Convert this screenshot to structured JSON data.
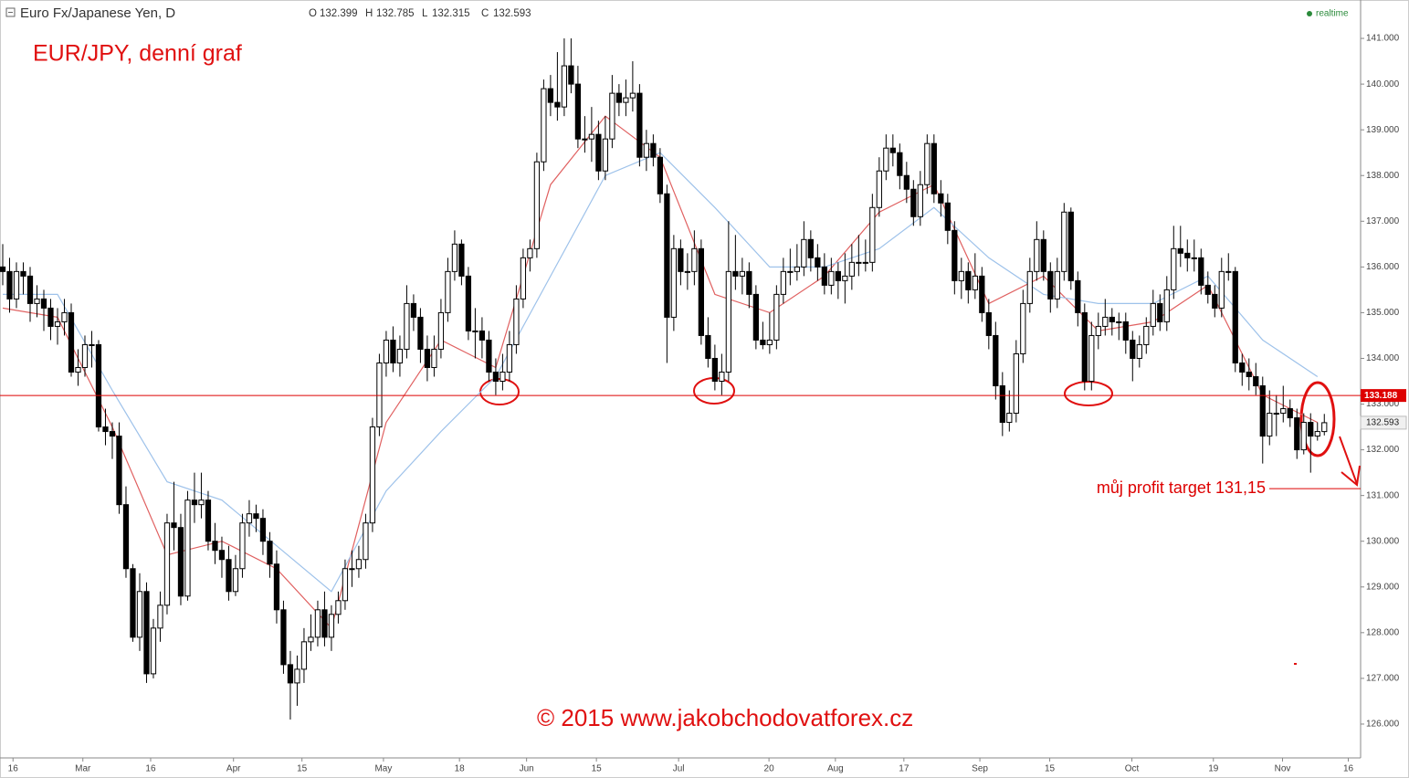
{
  "chart_data": {
    "type": "candlestick",
    "symbol": "Euro Fx/Japanese Yen, D",
    "ohlc_labels": [
      "O",
      "H",
      "L",
      "C"
    ],
    "status": "realtime",
    "title": "EUR/JPY, denní graf",
    "footer": "© 2015 www.jakobchodovatforex.cz",
    "up_color": "#ffffff",
    "down_color": "#000000",
    "xlim": [
      -0.4,
      198.3
    ],
    "ylim": [
      125.26,
      141.84
    ],
    "xticks": [
      {
        "value": 1.5,
        "label": "16"
      },
      {
        "value": 11.7,
        "label": "Mar"
      },
      {
        "value": 21.6,
        "label": "16"
      },
      {
        "value": 33.7,
        "label": "Apr"
      },
      {
        "value": 43.7,
        "label": "15"
      },
      {
        "value": 55.6,
        "label": "May"
      },
      {
        "value": 66.7,
        "label": "18"
      },
      {
        "value": 76.5,
        "label": "Jun"
      },
      {
        "value": 86.7,
        "label": "15"
      },
      {
        "value": 98.7,
        "label": "Jul"
      },
      {
        "value": 111.9,
        "label": "20"
      },
      {
        "value": 121.6,
        "label": "Aug"
      },
      {
        "value": 131.6,
        "label": "17"
      },
      {
        "value": 142.7,
        "label": "Sep"
      },
      {
        "value": 152.9,
        "label": "15"
      },
      {
        "value": 164.9,
        "label": "Oct"
      },
      {
        "value": 176.8,
        "label": "19"
      },
      {
        "value": 186.9,
        "label": "Nov"
      },
      {
        "value": 196.5,
        "label": "16"
      }
    ],
    "yticks": [
      {
        "value": 126,
        "label": "126.000"
      },
      {
        "value": 127,
        "label": "127.000"
      },
      {
        "value": 128,
        "label": "128.000"
      },
      {
        "value": 129,
        "label": "129.000"
      },
      {
        "value": 130,
        "label": "130.000"
      },
      {
        "value": 131,
        "label": "131.000"
      },
      {
        "value": 132,
        "label": "132.000"
      },
      {
        "value": 133,
        "label": "133.000"
      },
      {
        "value": 134,
        "label": "134.000"
      },
      {
        "value": 135,
        "label": "135.000"
      },
      {
        "value": 136,
        "label": "136.000"
      },
      {
        "value": 137,
        "label": "137.000"
      },
      {
        "value": 138,
        "label": "138.000"
      },
      {
        "value": 139,
        "label": "139.000"
      },
      {
        "value": 140,
        "label": "140.000"
      },
      {
        "value": 141,
        "label": "141.000"
      }
    ],
    "ohlc": [
      [
        136.0,
        136.5,
        135.6,
        135.9
      ],
      [
        135.9,
        136.2,
        135.0,
        135.3
      ],
      [
        135.3,
        136.1,
        135.1,
        135.9
      ],
      [
        135.9,
        136.1,
        135.4,
        135.8
      ],
      [
        135.8,
        136.0,
        134.8,
        135.2
      ],
      [
        135.2,
        135.6,
        134.9,
        135.3
      ],
      [
        135.3,
        135.5,
        134.6,
        135.1
      ],
      [
        135.1,
        135.3,
        134.4,
        134.7
      ],
      [
        134.7,
        135.1,
        134.3,
        134.8
      ],
      [
        134.8,
        135.3,
        134.5,
        135.0
      ],
      [
        135.0,
        135.2,
        133.6,
        133.7
      ],
      [
        133.7,
        134.2,
        133.4,
        133.8
      ],
      [
        133.8,
        134.5,
        133.6,
        134.3
      ],
      [
        134.3,
        134.6,
        133.8,
        134.3
      ],
      [
        134.3,
        134.4,
        132.4,
        132.5
      ],
      [
        132.5,
        132.9,
        132.1,
        132.4
      ],
      [
        132.4,
        132.6,
        131.8,
        132.3
      ],
      [
        132.3,
        132.6,
        130.6,
        130.8
      ],
      [
        130.8,
        131.2,
        129.2,
        129.4
      ],
      [
        129.4,
        129.5,
        127.8,
        127.9
      ],
      [
        127.9,
        129.3,
        127.6,
        128.9
      ],
      [
        128.9,
        129.1,
        126.9,
        127.1
      ],
      [
        127.1,
        128.3,
        127.0,
        128.1
      ],
      [
        128.1,
        128.9,
        127.8,
        128.6
      ],
      [
        128.6,
        130.6,
        128.4,
        130.4
      ],
      [
        130.4,
        131.3,
        129.8,
        130.3
      ],
      [
        130.3,
        130.6,
        128.6,
        128.8
      ],
      [
        128.8,
        131.1,
        128.7,
        130.9
      ],
      [
        130.9,
        131.5,
        130.4,
        130.8
      ],
      [
        130.8,
        131.5,
        130.5,
        130.9
      ],
      [
        130.9,
        131.1,
        129.8,
        130.0
      ],
      [
        130.0,
        130.4,
        129.5,
        129.8
      ],
      [
        129.8,
        130.1,
        129.2,
        129.6
      ],
      [
        129.6,
        129.9,
        128.7,
        128.9
      ],
      [
        128.9,
        129.7,
        128.8,
        129.4
      ],
      [
        129.4,
        130.6,
        129.2,
        130.4
      ],
      [
        130.4,
        130.9,
        130.1,
        130.6
      ],
      [
        130.6,
        130.8,
        130.2,
        130.5
      ],
      [
        130.5,
        130.7,
        129.7,
        130.0
      ],
      [
        130.0,
        130.2,
        129.2,
        129.5
      ],
      [
        129.5,
        129.8,
        128.2,
        128.5
      ],
      [
        128.5,
        128.7,
        127.1,
        127.3
      ],
      [
        127.3,
        127.6,
        126.1,
        126.9
      ],
      [
        126.9,
        127.5,
        126.4,
        127.2
      ],
      [
        127.2,
        128.1,
        126.9,
        127.8
      ],
      [
        127.8,
        128.4,
        127.6,
        127.9
      ],
      [
        127.9,
        128.7,
        127.7,
        128.5
      ],
      [
        128.5,
        128.9,
        127.7,
        127.9
      ],
      [
        127.9,
        128.6,
        127.6,
        128.4
      ],
      [
        128.4,
        128.9,
        128.2,
        128.7
      ],
      [
        128.7,
        129.6,
        128.5,
        129.4
      ],
      [
        129.4,
        129.8,
        129.0,
        129.4
      ],
      [
        129.4,
        129.9,
        129.2,
        129.6
      ],
      [
        129.6,
        130.6,
        129.4,
        130.4
      ],
      [
        130.4,
        132.7,
        130.2,
        132.5
      ],
      [
        132.5,
        134.1,
        132.3,
        133.9
      ],
      [
        133.9,
        134.6,
        133.6,
        134.4
      ],
      [
        134.4,
        134.7,
        133.7,
        133.9
      ],
      [
        133.9,
        134.5,
        133.6,
        134.2
      ],
      [
        134.2,
        135.6,
        134.0,
        135.2
      ],
      [
        135.2,
        135.4,
        134.6,
        134.9
      ],
      [
        134.9,
        135.1,
        133.9,
        134.2
      ],
      [
        134.2,
        134.5,
        133.5,
        133.8
      ],
      [
        133.8,
        134.5,
        133.6,
        134.2
      ],
      [
        134.2,
        135.3,
        134.0,
        135.0
      ],
      [
        135.0,
        136.2,
        134.8,
        135.9
      ],
      [
        135.9,
        136.8,
        135.7,
        136.5
      ],
      [
        136.5,
        136.6,
        135.6,
        135.8
      ],
      [
        135.8,
        136.0,
        134.4,
        134.6
      ],
      [
        134.6,
        135.1,
        134.0,
        134.6
      ],
      [
        134.6,
        134.9,
        134.0,
        134.4
      ],
      [
        134.4,
        134.6,
        133.5,
        133.7
      ],
      [
        133.7,
        134.0,
        133.2,
        133.5
      ],
      [
        133.5,
        134.1,
        133.3,
        133.7
      ],
      [
        133.7,
        134.6,
        133.5,
        134.3
      ],
      [
        134.3,
        135.6,
        134.1,
        135.3
      ],
      [
        135.3,
        136.4,
        135.1,
        136.2
      ],
      [
        136.2,
        136.6,
        135.9,
        136.4
      ],
      [
        136.4,
        138.5,
        136.2,
        138.3
      ],
      [
        138.3,
        140.1,
        138.1,
        139.9
      ],
      [
        139.9,
        140.2,
        139.3,
        139.6
      ],
      [
        139.6,
        140.7,
        139.2,
        139.5
      ],
      [
        139.5,
        141.0,
        139.3,
        140.4
      ],
      [
        140.4,
        141.0,
        139.8,
        140.0
      ],
      [
        140.0,
        140.4,
        138.6,
        138.8
      ],
      [
        138.8,
        139.3,
        138.5,
        138.8
      ],
      [
        138.8,
        139.5,
        138.3,
        138.9
      ],
      [
        138.9,
        139.2,
        137.9,
        138.1
      ],
      [
        138.1,
        139.3,
        137.9,
        138.8
      ],
      [
        138.8,
        140.2,
        138.6,
        139.8
      ],
      [
        139.8,
        140.0,
        139.3,
        139.6
      ],
      [
        139.6,
        140.1,
        139.3,
        139.7
      ],
      [
        139.7,
        140.5,
        139.4,
        139.8
      ],
      [
        139.8,
        140.0,
        138.2,
        138.4
      ],
      [
        138.4,
        139.0,
        138.1,
        138.7
      ],
      [
        138.7,
        138.9,
        138.2,
        138.4
      ],
      [
        138.4,
        138.6,
        137.4,
        137.6
      ],
      [
        137.6,
        137.8,
        133.9,
        134.9
      ],
      [
        134.9,
        136.7,
        134.6,
        136.4
      ],
      [
        136.4,
        136.6,
        135.6,
        135.9
      ],
      [
        135.9,
        136.3,
        135.5,
        135.9
      ],
      [
        135.9,
        136.8,
        135.6,
        136.4
      ],
      [
        136.4,
        136.6,
        134.3,
        134.5
      ],
      [
        134.5,
        134.9,
        133.8,
        134.0
      ],
      [
        134.0,
        134.3,
        133.3,
        133.5
      ],
      [
        133.5,
        134.1,
        133.2,
        133.7
      ],
      [
        133.7,
        137.0,
        133.5,
        135.9
      ],
      [
        135.9,
        136.7,
        135.5,
        135.8
      ],
      [
        135.8,
        136.2,
        135.4,
        135.9
      ],
      [
        135.9,
        136.1,
        135.1,
        135.4
      ],
      [
        135.4,
        135.6,
        134.2,
        134.4
      ],
      [
        134.4,
        134.8,
        134.2,
        134.3
      ],
      [
        134.3,
        135.0,
        134.1,
        134.4
      ],
      [
        134.4,
        135.6,
        134.2,
        135.4
      ],
      [
        135.4,
        136.2,
        135.2,
        135.9
      ],
      [
        135.9,
        136.4,
        135.6,
        135.9
      ],
      [
        135.9,
        136.5,
        135.7,
        136.0
      ],
      [
        136.0,
        137.0,
        135.8,
        136.6
      ],
      [
        136.6,
        136.8,
        135.9,
        136.2
      ],
      [
        136.2,
        136.5,
        135.7,
        136.0
      ],
      [
        136.0,
        136.3,
        135.4,
        135.6
      ],
      [
        135.6,
        136.2,
        135.4,
        135.9
      ],
      [
        135.9,
        136.1,
        135.3,
        135.7
      ],
      [
        135.7,
        136.3,
        135.2,
        135.8
      ],
      [
        135.8,
        136.5,
        135.5,
        136.1
      ],
      [
        136.1,
        136.7,
        135.8,
        136.1
      ],
      [
        136.1,
        136.6,
        135.9,
        136.1
      ],
      [
        136.1,
        137.6,
        135.9,
        137.3
      ],
      [
        137.3,
        138.4,
        137.1,
        138.1
      ],
      [
        138.1,
        138.9,
        137.9,
        138.6
      ],
      [
        138.6,
        138.9,
        138.2,
        138.5
      ],
      [
        138.5,
        138.7,
        137.7,
        138.0
      ],
      [
        138.0,
        138.3,
        137.4,
        137.7
      ],
      [
        137.7,
        137.9,
        136.9,
        137.1
      ],
      [
        137.1,
        138.1,
        136.9,
        137.8
      ],
      [
        137.8,
        138.9,
        137.6,
        138.7
      ],
      [
        138.7,
        138.9,
        137.4,
        137.6
      ],
      [
        137.6,
        137.9,
        137.1,
        137.4
      ],
      [
        137.4,
        137.6,
        136.5,
        136.8
      ],
      [
        136.8,
        137.0,
        135.4,
        135.7
      ],
      [
        135.7,
        136.2,
        135.3,
        135.9
      ],
      [
        135.9,
        136.1,
        135.2,
        135.5
      ],
      [
        135.5,
        136.3,
        135.3,
        135.8
      ],
      [
        135.8,
        136.0,
        134.8,
        135.0
      ],
      [
        135.0,
        135.3,
        134.2,
        134.5
      ],
      [
        134.5,
        134.8,
        133.1,
        133.4
      ],
      [
        133.4,
        133.7,
        132.3,
        132.6
      ],
      [
        132.6,
        133.3,
        132.4,
        132.8
      ],
      [
        132.8,
        134.4,
        132.6,
        134.1
      ],
      [
        134.1,
        135.5,
        133.9,
        135.2
      ],
      [
        135.2,
        136.2,
        135.0,
        135.9
      ],
      [
        135.9,
        137.0,
        135.7,
        136.6
      ],
      [
        136.6,
        136.8,
        135.7,
        135.9
      ],
      [
        135.9,
        136.1,
        135.0,
        135.3
      ],
      [
        135.3,
        136.2,
        135.1,
        135.9
      ],
      [
        135.9,
        137.4,
        135.7,
        137.2
      ],
      [
        137.2,
        137.3,
        135.5,
        135.7
      ],
      [
        135.7,
        135.9,
        134.7,
        135.0
      ],
      [
        135.0,
        135.2,
        133.3,
        133.5
      ],
      [
        133.5,
        134.8,
        133.3,
        134.5
      ],
      [
        134.5,
        135.0,
        134.2,
        134.7
      ],
      [
        134.7,
        135.3,
        134.5,
        134.9
      ],
      [
        134.9,
        135.1,
        134.5,
        134.8
      ],
      [
        134.8,
        135.0,
        134.4,
        134.8
      ],
      [
        134.8,
        135.0,
        134.1,
        134.4
      ],
      [
        134.4,
        134.6,
        133.5,
        134.0
      ],
      [
        134.0,
        134.5,
        133.8,
        134.3
      ],
      [
        134.3,
        134.9,
        134.1,
        134.7
      ],
      [
        134.7,
        135.5,
        134.5,
        135.2
      ],
      [
        135.2,
        135.4,
        134.6,
        134.8
      ],
      [
        134.8,
        135.8,
        134.6,
        135.5
      ],
      [
        135.5,
        136.9,
        135.3,
        136.4
      ],
      [
        136.4,
        136.9,
        136.0,
        136.3
      ],
      [
        136.3,
        136.6,
        135.9,
        136.2
      ],
      [
        136.2,
        136.6,
        135.9,
        136.2
      ],
      [
        136.2,
        136.4,
        135.4,
        135.6
      ],
      [
        135.6,
        135.9,
        135.2,
        135.4
      ],
      [
        135.4,
        135.6,
        134.9,
        135.1
      ],
      [
        135.1,
        136.2,
        134.9,
        135.9
      ],
      [
        135.9,
        136.3,
        135.7,
        135.9
      ],
      [
        135.9,
        136.0,
        133.7,
        133.9
      ],
      [
        133.9,
        134.1,
        133.4,
        133.7
      ],
      [
        133.7,
        134.0,
        133.3,
        133.6
      ],
      [
        133.6,
        133.9,
        133.2,
        133.4
      ],
      [
        133.4,
        133.6,
        131.7,
        132.3
      ],
      [
        132.3,
        133.3,
        132.1,
        132.8
      ],
      [
        132.8,
        133.2,
        132.3,
        132.8
      ],
      [
        132.8,
        133.4,
        132.6,
        132.9
      ],
      [
        132.9,
        133.1,
        132.5,
        132.7
      ],
      [
        132.7,
        132.9,
        131.8,
        132.0
      ],
      [
        132.0,
        132.8,
        131.9,
        132.6
      ],
      [
        132.6,
        132.8,
        131.5,
        132.3
      ],
      [
        132.3,
        132.6,
        132.2,
        132.4
      ],
      [
        132.399,
        132.785,
        132.315,
        132.593
      ]
    ],
    "series": [
      {
        "color": "#e06060",
        "x": [
          0,
          8,
          16,
          24,
          32,
          40,
          48,
          56,
          64,
          72,
          80,
          88,
          96,
          104,
          112,
          120,
          128,
          136,
          144,
          152,
          160,
          168,
          176,
          184,
          192
        ],
        "values": [
          135.1,
          134.9,
          132.5,
          129.7,
          130.0,
          129.4,
          128.1,
          132.6,
          134.4,
          133.8,
          137.8,
          139.3,
          138.4,
          135.4,
          135.0,
          135.8,
          137.2,
          137.8,
          135.2,
          135.8,
          134.6,
          134.8,
          135.6,
          133.2,
          132.6
        ]
      },
      {
        "color": "#9ec2ea",
        "x": [
          0,
          8,
          16,
          24,
          32,
          40,
          48,
          56,
          64,
          72,
          80,
          88,
          96,
          104,
          112,
          120,
          128,
          136,
          144,
          152,
          160,
          168,
          176,
          184,
          192
        ],
        "values": [
          135.4,
          135.4,
          133.3,
          131.3,
          130.9,
          129.9,
          128.9,
          131.1,
          132.4,
          133.6,
          135.8,
          138.0,
          138.5,
          137.3,
          136.0,
          136.0,
          136.4,
          137.3,
          136.2,
          135.4,
          135.2,
          135.2,
          135.8,
          134.4,
          133.6
        ]
      }
    ],
    "hlines": [
      {
        "value": 133.188,
        "color": "#dd0000"
      },
      {
        "value": 131.15,
        "color": "#dd0000",
        "label": "můj profit target 131,15"
      }
    ]
  }
}
